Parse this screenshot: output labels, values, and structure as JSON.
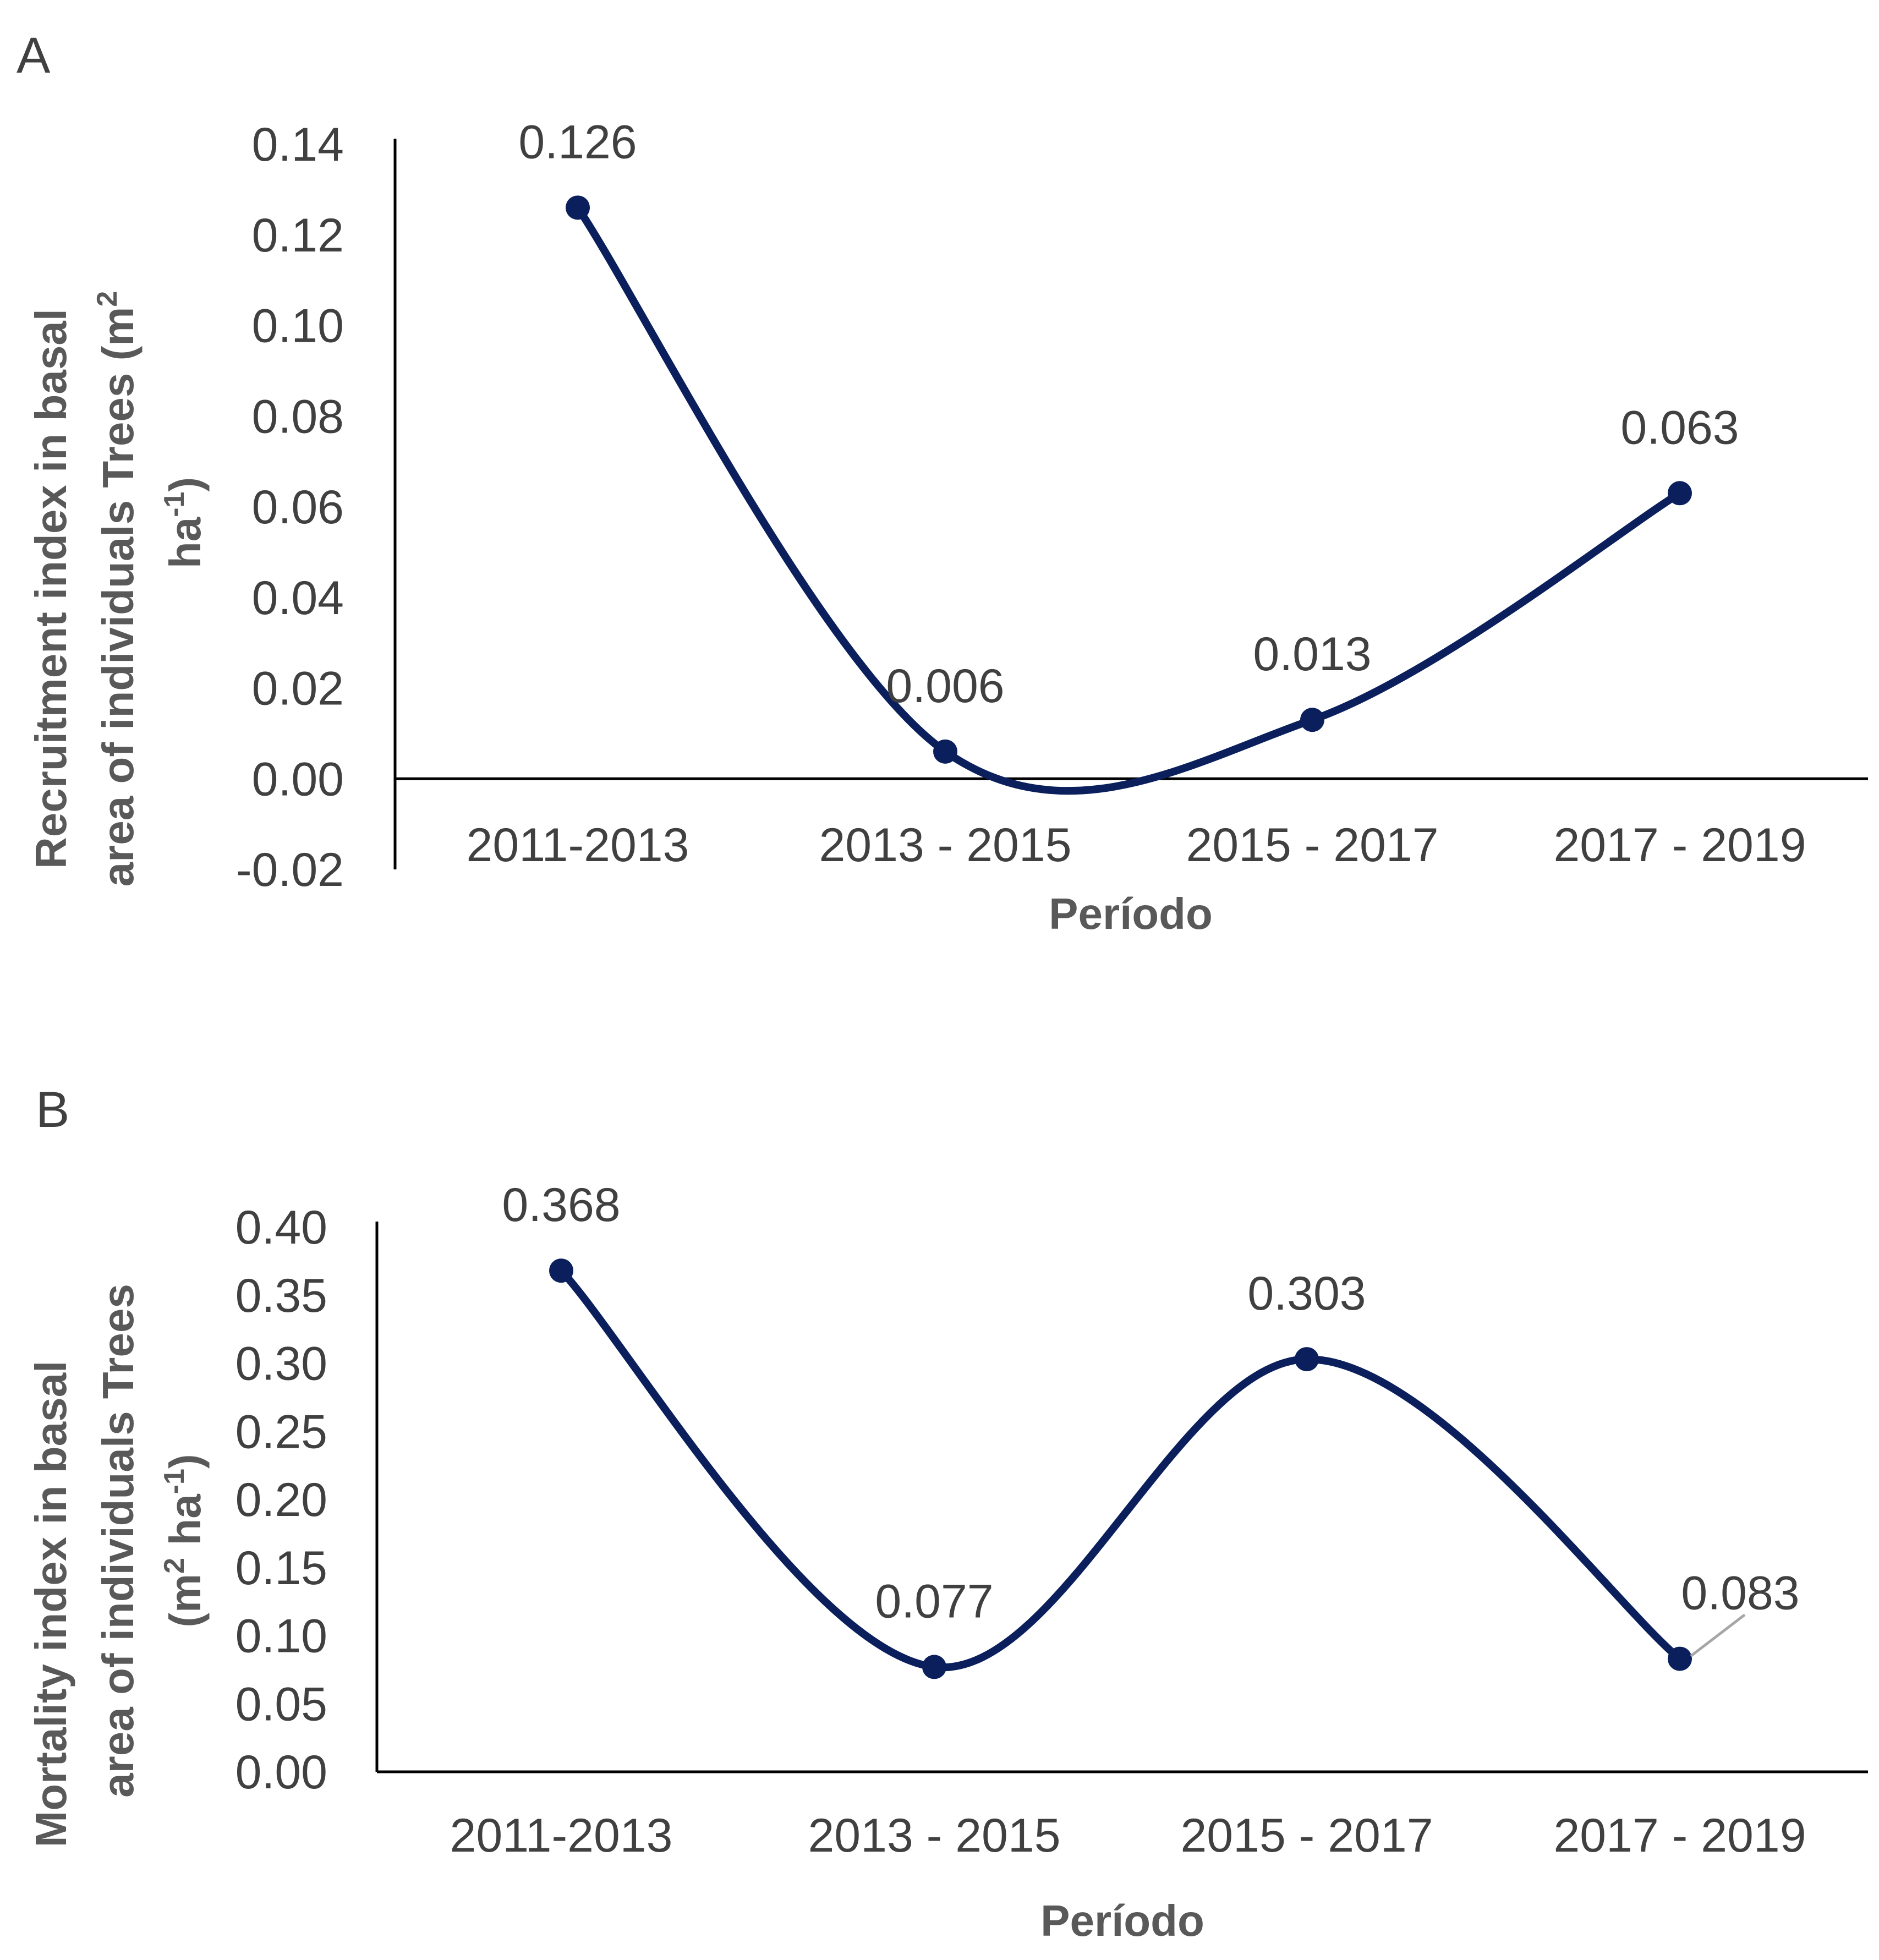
{
  "panels": [
    {
      "panel_label": "A",
      "y_title_line1": "Recruitment index in basal",
      "y_title_line2_text": "area of individuals Trees  (m",
      "y_title_line2_sup": "2",
      "y_title_line3_text": "ha",
      "y_title_line3_sup": "-1",
      "y_title_line3_end": ")",
      "x_title": "Período",
      "y_tick_labels": [
        "0.14",
        "0.12",
        "0.10",
        "0.08",
        "0.06",
        "0.04",
        "0.02",
        "0.00",
        "-0.02"
      ],
      "data_labels": [
        "0.126",
        "0.006",
        "0.013",
        "0.063"
      ]
    },
    {
      "panel_label": "B",
      "y_title_line1": "Mortality index in basal",
      "y_title_line2_text": "area of individuals Trees",
      "y_title_line3_text": "(m",
      "y_title_line3_sup": "2",
      "y_title_line3_mid": " ha",
      "y_title_line3_sup2": "-1",
      "y_title_line3_end": ")",
      "x_title": "Período",
      "y_tick_labels": [
        "0.40",
        "0.35",
        "0.30",
        "0.25",
        "0.20",
        "0.15",
        "0.10",
        "0.05",
        "0.00"
      ],
      "data_labels": [
        "0.368",
        "0.077",
        "0.303",
        "0.083"
      ]
    }
  ],
  "chart_data": [
    {
      "type": "line",
      "categories": [
        "2011-2013",
        "2013 - 2015",
        "2015 - 2017",
        "2017 - 2019"
      ],
      "values": [
        0.126,
        0.006,
        0.013,
        0.063
      ],
      "xlabel": "Período",
      "ylabel": "Recruitment index in basal area of individuals Trees (m² ha⁻¹)",
      "ylim": [
        -0.02,
        0.14
      ],
      "smooth": true,
      "color": "#0a1f5c",
      "grid": false,
      "legend": "none"
    },
    {
      "type": "line",
      "categories": [
        "2011-2013",
        "2013 - 2015",
        "2015 - 2017",
        "2017 - 2019"
      ],
      "values": [
        0.368,
        0.077,
        0.303,
        0.083
      ],
      "xlabel": "Período",
      "ylabel": "Mortality index in basal area of individuals Trees (m² ha⁻¹)",
      "ylim": [
        0,
        0.4
      ],
      "smooth": true,
      "color": "#0a1f5c",
      "grid": false,
      "legend": "none"
    }
  ]
}
